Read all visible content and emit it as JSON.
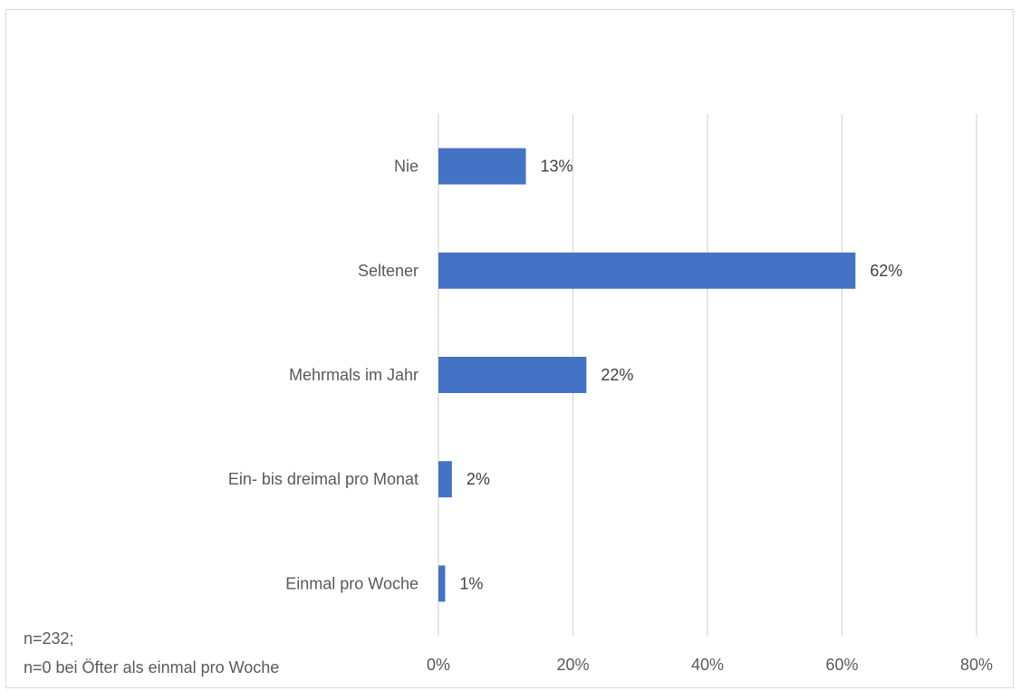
{
  "chart_data": {
    "type": "bar",
    "orientation": "horizontal",
    "categories": [
      "Nie",
      "Seltener",
      "Mehrmals im Jahr",
      "Ein- bis dreimal pro Monat",
      "Einmal pro Woche"
    ],
    "values": [
      13,
      62,
      22,
      2,
      1
    ],
    "value_labels": [
      "13%",
      "62%",
      "22%",
      "2%",
      "1%"
    ],
    "xlim": [
      0,
      80
    ],
    "xticks": [
      0,
      20,
      40,
      60,
      80
    ],
    "xtick_labels": [
      "0%",
      "20%",
      "40%",
      "60%",
      "80%"
    ],
    "grid": true,
    "bar_color": "#4472c4",
    "grid_color": "#d9d9d9",
    "title": "",
    "xlabel": "",
    "ylabel": ""
  },
  "note": {
    "lines": [
      "n=232;",
      "n=0 bei Öfter als einmal pro Woche"
    ]
  }
}
